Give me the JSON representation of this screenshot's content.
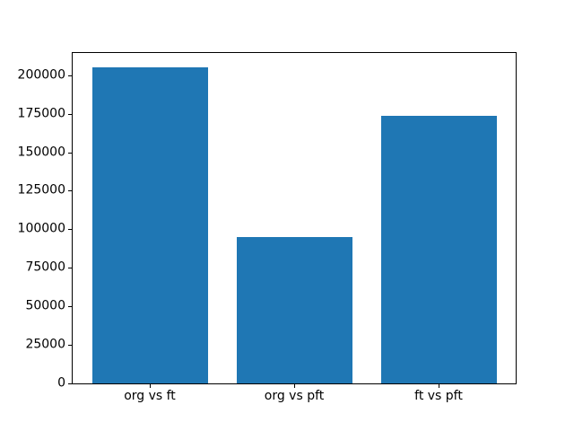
{
  "chart_data": {
    "type": "bar",
    "title": "",
    "xlabel": "",
    "ylabel": "",
    "categories": [
      "org vs ft",
      "org vs pft",
      "ft vs pft"
    ],
    "values": [
      205000,
      95000,
      173500
    ],
    "yticks": [
      0,
      25000,
      50000,
      75000,
      100000,
      125000,
      150000,
      175000,
      200000
    ],
    "ylim": [
      0,
      215000
    ],
    "bar_color": "#1f77b4",
    "background_color": "#ffffff",
    "spine_color": "#000000",
    "text_color": "#000000",
    "grid": false,
    "legend": null,
    "bar_width_fraction": 0.8,
    "x_margin_fraction": 0.05
  }
}
